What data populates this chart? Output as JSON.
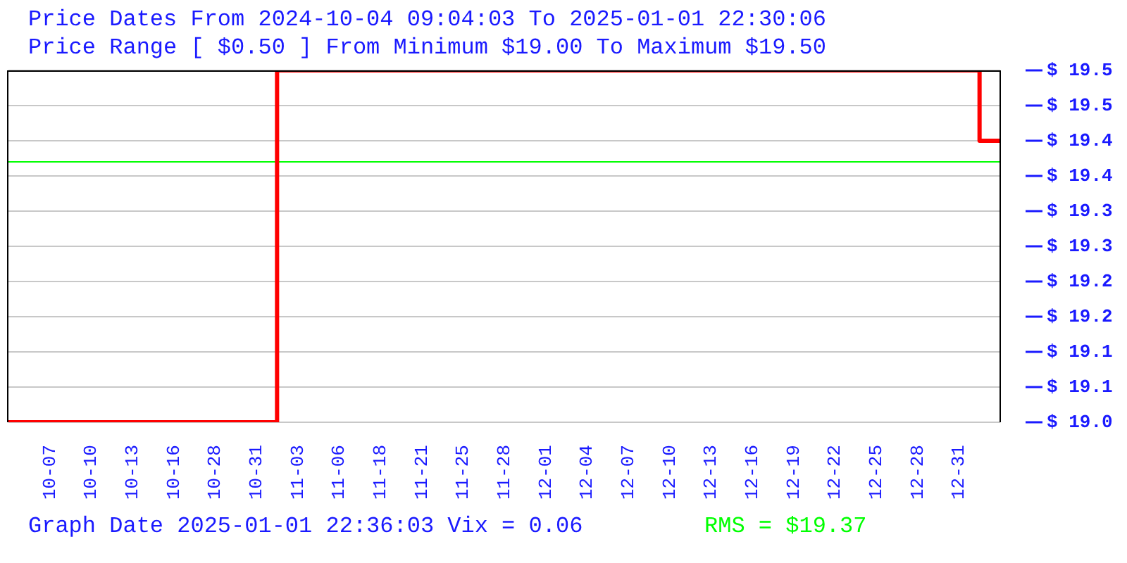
{
  "chart_data": {
    "type": "step",
    "title": "Price Dates From 2024-10-04 09:04:03 To 2025-01-01 22:30:06",
    "subtitle": "Price Range [ $0.50 ] From Minimum $19.00 To Maximum $19.50",
    "categories": [
      null,
      "10-07",
      "10-10",
      "10-13",
      "10-16",
      "10-28",
      "10-31",
      "11-03",
      "11-06",
      "11-18",
      "11-21",
      "11-25",
      "11-28",
      "12-01",
      "12-04",
      "12-07",
      "12-10",
      "12-13",
      "12-16",
      "12-19",
      "12-22",
      "12-25",
      "12-28",
      "12-31",
      null
    ],
    "series": [
      {
        "color": "#ff0000",
        "values": [
          19.0,
          19.0,
          19.0,
          19.0,
          19.0,
          19.0,
          19.0,
          19.5,
          19.5,
          19.5,
          19.5,
          19.5,
          19.5,
          19.5,
          19.5,
          19.5,
          19.5,
          19.5,
          19.5,
          19.5,
          19.5,
          19.5,
          19.5,
          19.5,
          19.4
        ]
      }
    ],
    "ylim": [
      19.0,
      19.5
    ],
    "yticks": [
      {
        "value": 19.0,
        "label": "$ 19.0"
      },
      {
        "value": 19.05,
        "label": "$ 19.1"
      },
      {
        "value": 19.1,
        "label": "$ 19.1"
      },
      {
        "value": 19.15,
        "label": "$ 19.2"
      },
      {
        "value": 19.2,
        "label": "$ 19.2"
      },
      {
        "value": 19.25,
        "label": "$ 19.3"
      },
      {
        "value": 19.3,
        "label": "$ 19.3"
      },
      {
        "value": 19.35,
        "label": "$ 19.4"
      },
      {
        "value": 19.4,
        "label": "$ 19.4"
      },
      {
        "value": 19.45,
        "label": "$ 19.5"
      },
      {
        "value": 19.5,
        "label": "$ 19.5"
      }
    ],
    "ref_lines": [
      {
        "axis": "y",
        "value": 19.37,
        "label": "RMS = $19.37",
        "color": "#00ff00"
      }
    ],
    "annotations": [
      "Graph Date 2025-01-01 22:36:03 Vix = 0.06"
    ],
    "grid": "y",
    "marker": "none",
    "line_style": "solid"
  }
}
